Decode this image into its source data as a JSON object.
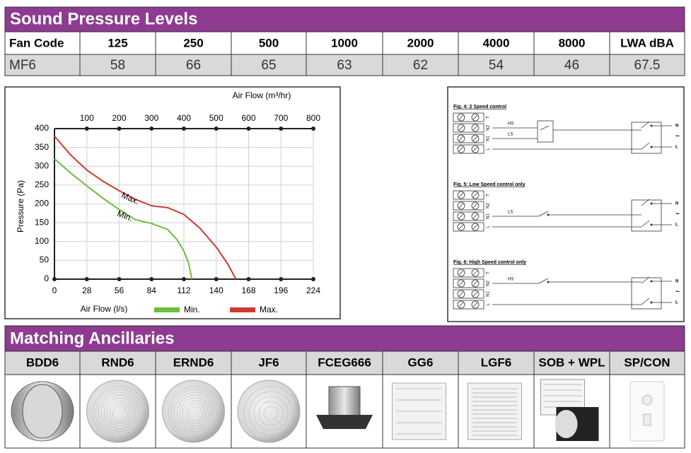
{
  "sound_pressure": {
    "title": "Sound Pressure Levels",
    "headers": [
      "Fan Code",
      "125",
      "250",
      "500",
      "1000",
      "2000",
      "4000",
      "8000",
      "LWA dBA"
    ],
    "row": [
      "MF6",
      58,
      66,
      65,
      63,
      62,
      54,
      46,
      67.5
    ]
  },
  "chart_data": {
    "type": "line",
    "x_label": "Air Flow (l/s)",
    "x2_label": "Air Flow (m³/hr)",
    "y_label": "Pressure (Pa)",
    "xlim": [
      0,
      224
    ],
    "xticks": [
      0,
      28,
      56,
      84,
      112,
      140,
      168,
      196,
      224
    ],
    "x2lim": [
      0,
      800
    ],
    "x2ticks": [
      100,
      200,
      300,
      400,
      500,
      600,
      700,
      800
    ],
    "ylim": [
      0,
      400
    ],
    "yticks": [
      0,
      50,
      100,
      150,
      200,
      250,
      300,
      350,
      400
    ],
    "grid": true,
    "legend": "bottom",
    "series": [
      {
        "name": "Min.",
        "color": "#6cbf3c",
        "x": [
          0,
          14,
          28,
          42,
          56,
          70,
          84,
          98,
          106,
          112,
          116,
          119
        ],
        "values": [
          320,
          282,
          248,
          215,
          185,
          158,
          148,
          132,
          105,
          75,
          43,
          0
        ]
      },
      {
        "name": "Max.",
        "color": "#d03a2f",
        "x": [
          0,
          14,
          28,
          42,
          56,
          70,
          84,
          98,
          112,
          126,
          140,
          150,
          157
        ],
        "values": [
          380,
          330,
          290,
          260,
          235,
          212,
          195,
          190,
          172,
          135,
          85,
          40,
          0
        ]
      }
    ]
  },
  "wiring": {
    "diagrams": [
      {
        "title": "Fig. 4: 2 Speed control",
        "terminals": [
          "T",
          "N2",
          "N1",
          "L"
        ],
        "speeds": [
          "HS",
          "LS"
        ],
        "supply": [
          "N",
          "~",
          "L"
        ]
      },
      {
        "title": "Fig. 5: Low Speed control only",
        "terminals": [
          "T",
          "N2",
          "N1",
          "L"
        ],
        "speeds": [
          "LS"
        ],
        "supply": [
          "N",
          "~",
          "L"
        ]
      },
      {
        "title": "Fig. 6: High Speed control only",
        "terminals": [
          "T",
          "N2",
          "N1",
          "L"
        ],
        "speeds": [
          "HS"
        ],
        "supply": [
          "N",
          "~",
          "L"
        ]
      }
    ]
  },
  "ancillaries": {
    "title": "Matching Ancillaries",
    "items": [
      "BDD6",
      "RND6",
      "ERND6",
      "JF6",
      "FCEG666",
      "GG6",
      "LGF6",
      "SOB + WPL",
      "SP/CON"
    ]
  }
}
